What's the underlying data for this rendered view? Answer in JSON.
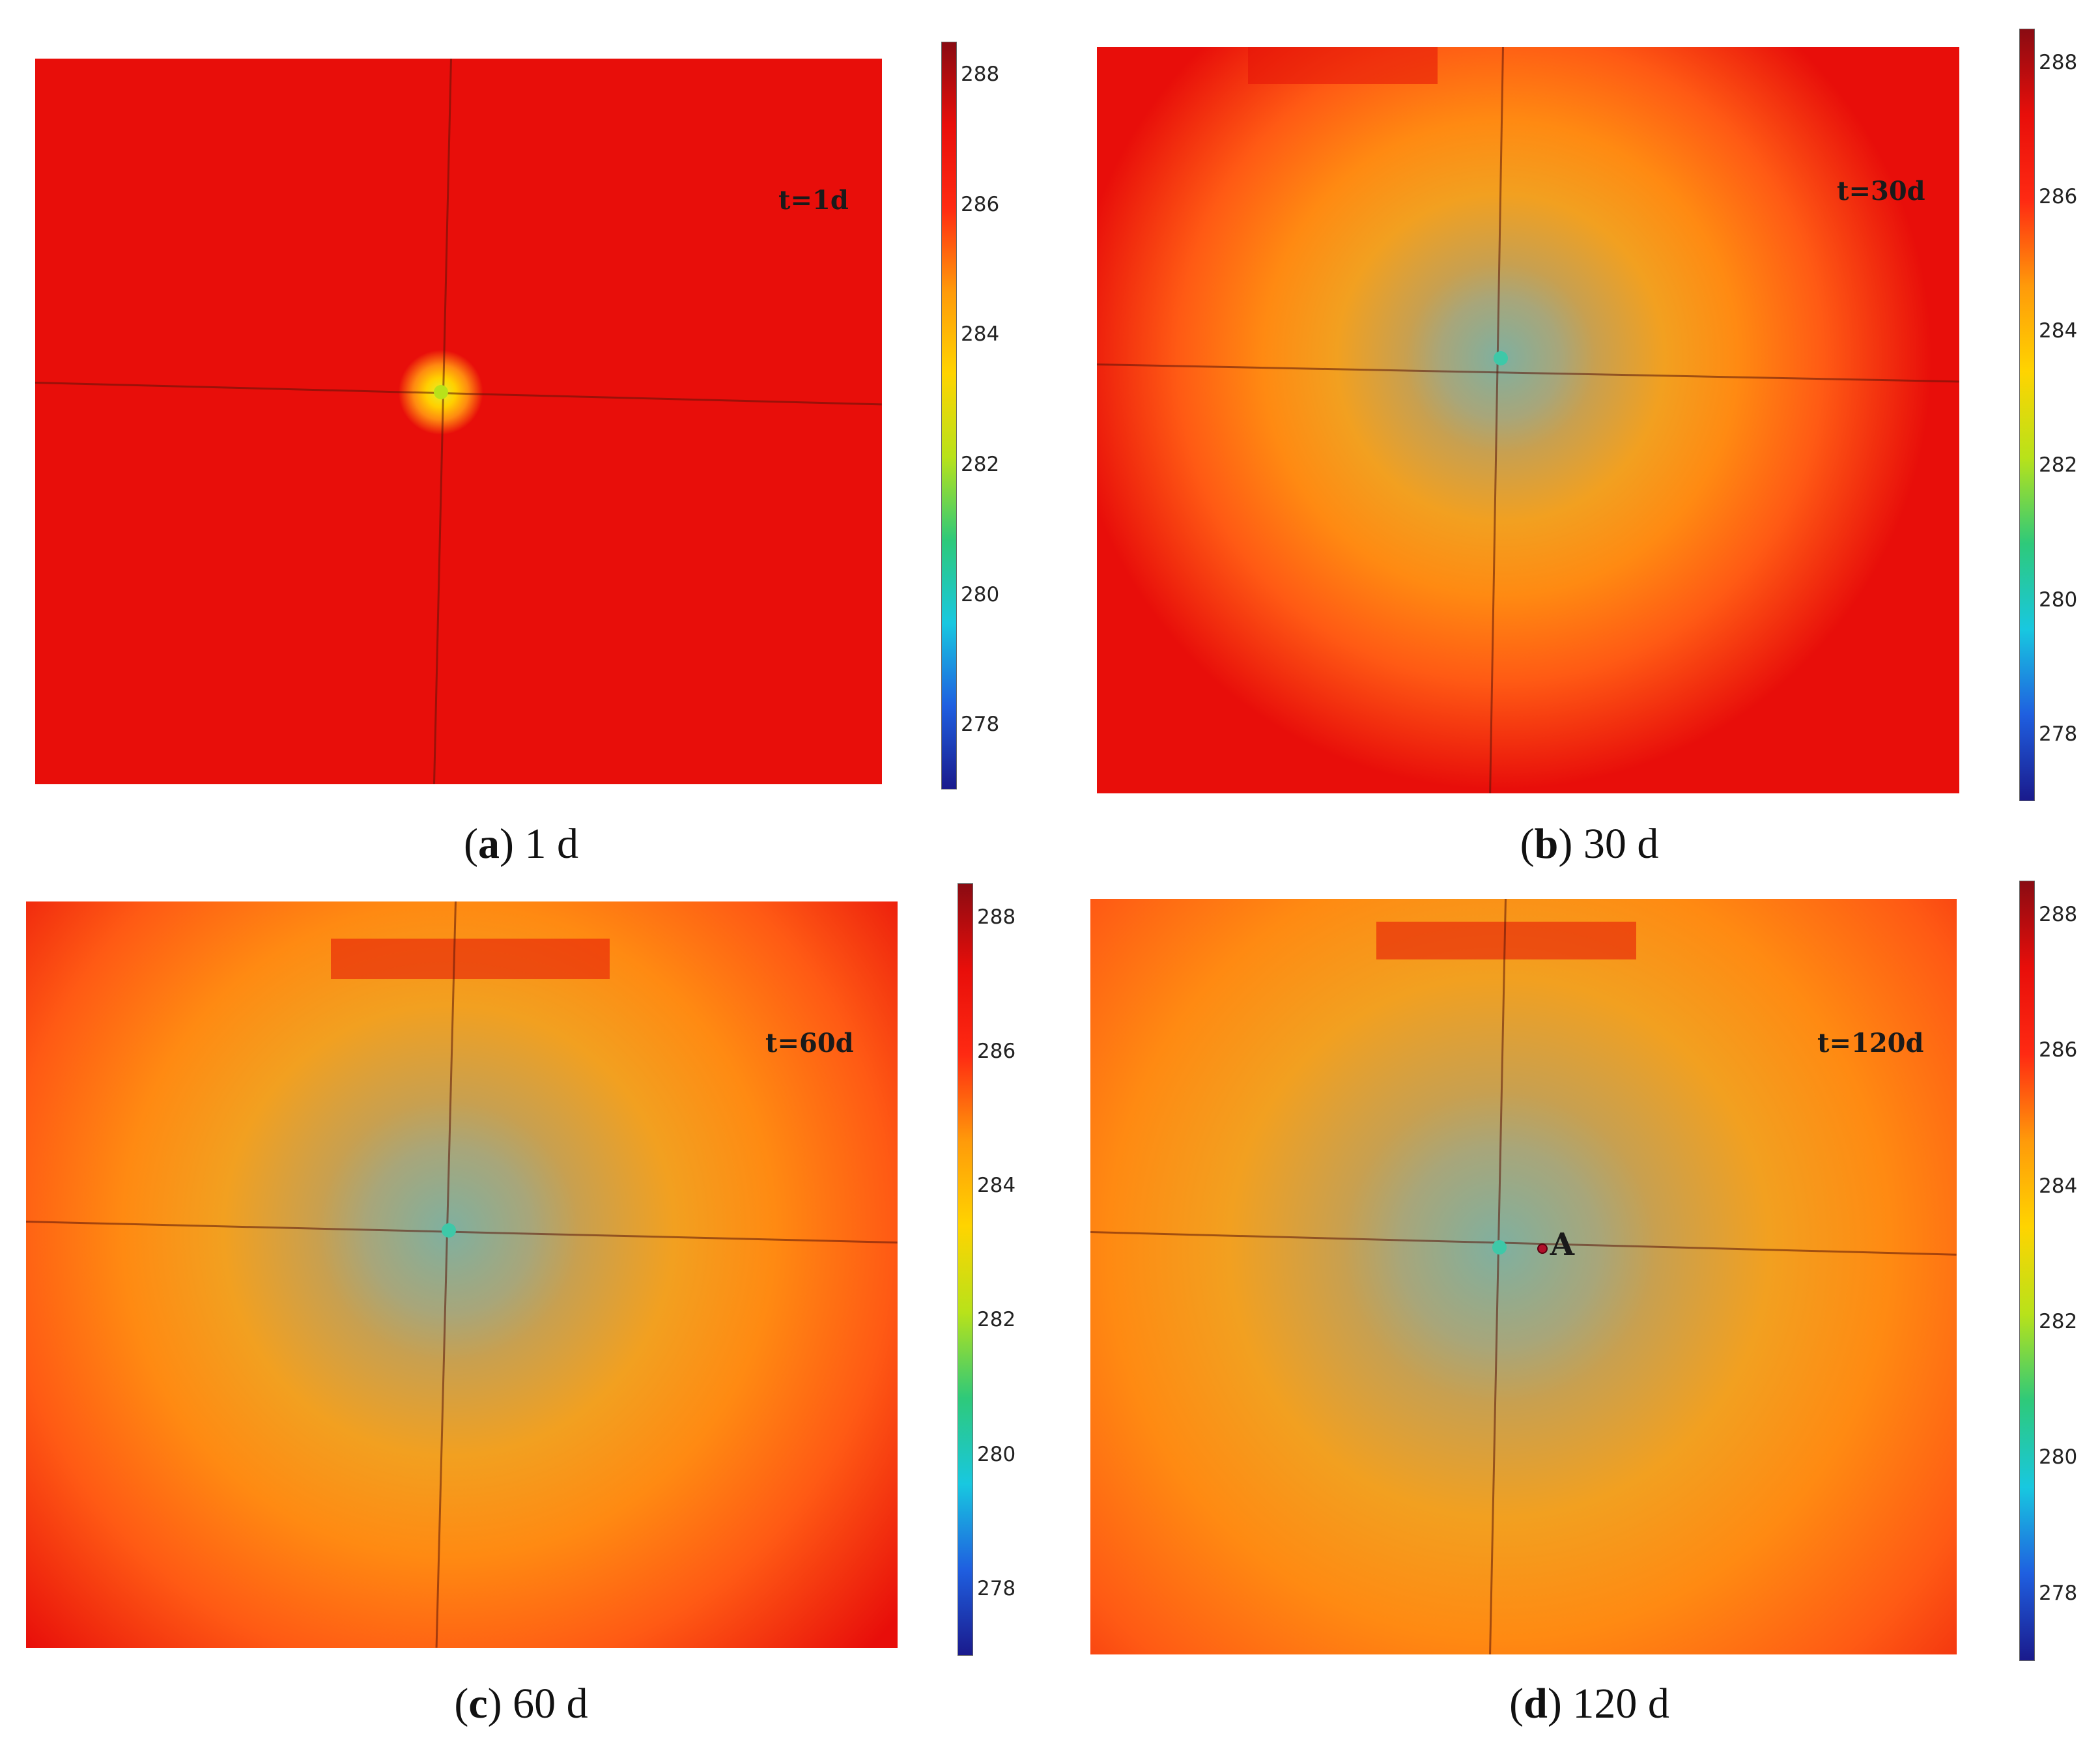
{
  "chart_data": [
    {
      "type": "heatmap",
      "panel_id": "a",
      "time_label": "t=1d",
      "caption_letter": "a",
      "caption_text": "1 d",
      "colorbar": {
        "min": 277,
        "max": 288.5,
        "ticks": [
          278,
          280,
          282,
          284,
          286,
          288
        ]
      },
      "field": {
        "ambient": 287,
        "center_value": 283.5,
        "cold_radius": 0.05,
        "well_value": 283.5
      },
      "marker": null
    },
    {
      "type": "heatmap",
      "panel_id": "b",
      "time_label": "t=30d",
      "caption_letter": "b",
      "caption_text": "30 d",
      "colorbar": {
        "min": 277,
        "max": 288.5,
        "ticks": [
          278,
          280,
          282,
          284,
          286,
          288
        ]
      },
      "field": {
        "ambient": 287,
        "center_value": 282.8,
        "cold_radius": 0.5,
        "well_value": 281.5
      },
      "marker": null
    },
    {
      "type": "heatmap",
      "panel_id": "c",
      "time_label": "t=60d",
      "caption_letter": "c",
      "caption_text": "60 d",
      "colorbar": {
        "min": 277,
        "max": 288.5,
        "ticks": [
          278,
          280,
          282,
          284,
          286,
          288
        ]
      },
      "field": {
        "ambient": 287,
        "center_value": 282.5,
        "cold_radius": 0.68,
        "well_value": 281.5
      },
      "marker": null
    },
    {
      "type": "heatmap",
      "panel_id": "d",
      "time_label": "t=120d",
      "caption_letter": "d",
      "caption_text": "120 d",
      "colorbar": {
        "min": 277,
        "max": 288.5,
        "ticks": [
          278,
          280,
          282,
          284,
          286,
          288
        ]
      },
      "field": {
        "ambient": 287,
        "center_value": 282.4,
        "cold_radius": 0.82,
        "well_value": 281.5
      },
      "marker": {
        "label": "A"
      }
    }
  ],
  "colors": {
    "colormap": [
      "#1a1a8c",
      "#1f5fe0",
      "#18c8e0",
      "#2ec97a",
      "#b8e21a",
      "#ffd400",
      "#ff9a0a",
      "#ff2a12",
      "#e80e0a",
      "#8a0b12"
    ],
    "marker": "#b0102a"
  }
}
